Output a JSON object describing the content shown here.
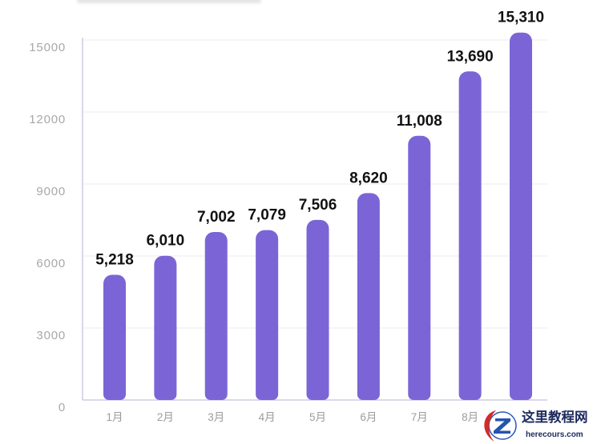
{
  "chart_data": {
    "type": "bar",
    "title": "",
    "xlabel": "",
    "ylabel": "",
    "categories": [
      "1月",
      "2月",
      "3月",
      "4月",
      "5月",
      "6月",
      "7月",
      "8月",
      ""
    ],
    "values": [
      5218,
      6010,
      7002,
      7079,
      7506,
      8620,
      11008,
      13690,
      15310
    ],
    "labels": [
      "5,218",
      "6,010",
      "7,002",
      "7,079",
      "7,506",
      "8,620",
      "11,008",
      "13,690",
      "15,310"
    ],
    "yticks": [
      0,
      3000,
      6000,
      9000,
      12000,
      15000
    ],
    "ylim": [
      0,
      15000
    ],
    "grid": true,
    "bar_color": "#7B65D6"
  },
  "watermark": {
    "title": "这里教程网",
    "url": "herecours.com"
  }
}
